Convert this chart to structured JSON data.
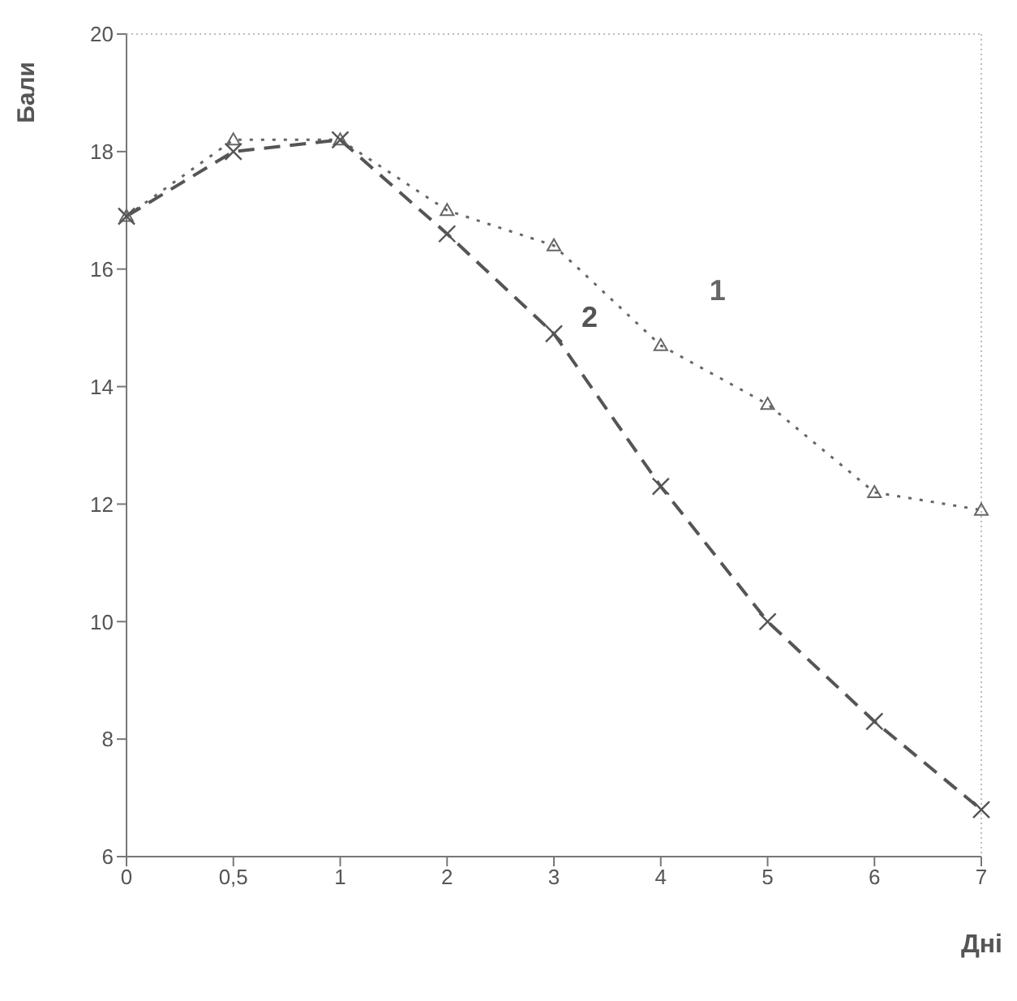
{
  "chart_data": {
    "type": "line",
    "xlabel": "Дні",
    "ylabel": "Бали",
    "categories": [
      "0",
      "0,5",
      "1",
      "2",
      "3",
      "4",
      "5",
      "6",
      "7"
    ],
    "series": [
      {
        "name": "1",
        "color": "#666666",
        "marker": "triangle",
        "line_style": "dotted",
        "values": [
          16.9,
          18.2,
          18.2,
          17.0,
          16.4,
          14.7,
          13.7,
          12.2,
          11.9
        ]
      },
      {
        "name": "2",
        "color": "#555555",
        "marker": "cross",
        "line_style": "dashed",
        "values": [
          16.9,
          18.0,
          18.2,
          16.6,
          14.9,
          12.3,
          10.0,
          8.3,
          6.8
        ]
      }
    ],
    "ylim": [
      6,
      20
    ],
    "yticks": [
      6,
      8,
      10,
      12,
      14,
      16,
      18,
      20
    ],
    "grid": false,
    "legend": false
  }
}
